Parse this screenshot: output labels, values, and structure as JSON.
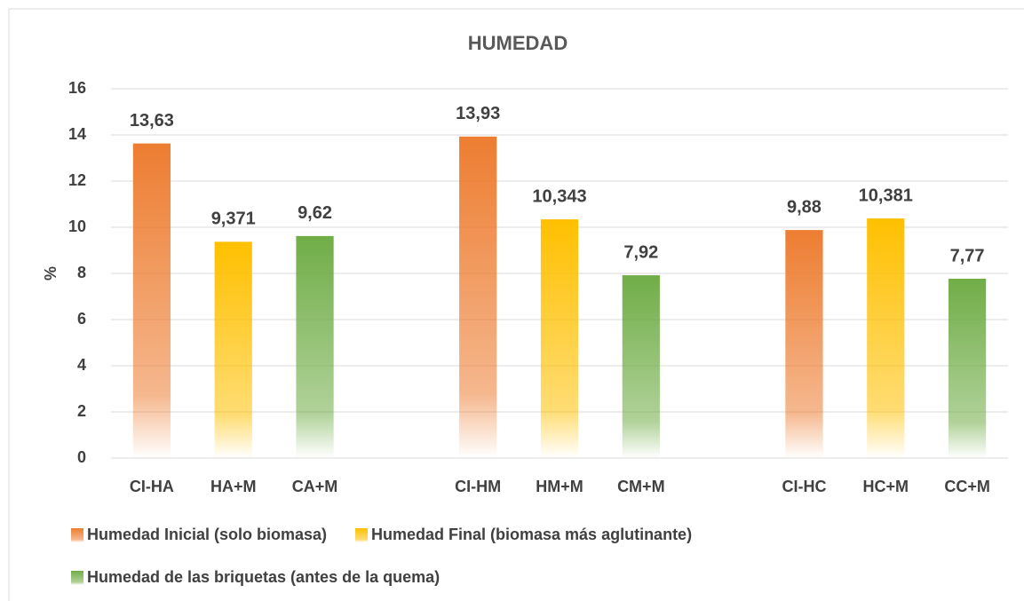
{
  "chart_data": {
    "type": "bar",
    "title": "HUMEDAD",
    "y_label": "%",
    "categories": [
      "CI-HA",
      "HA+M",
      "CA+M",
      null,
      "CI-HM",
      "HM+M",
      "CM+M",
      null,
      "CI-HC",
      "HC+M",
      "CC+M"
    ],
    "series": [
      {
        "name": "Humedad Inicial (solo biomasa)",
        "color": "#ed7d31",
        "values": [
          13.63,
          null,
          null,
          null,
          13.93,
          null,
          null,
          null,
          9.88,
          null,
          null
        ],
        "value_labels": [
          "13,63",
          null,
          null,
          null,
          "13,93",
          null,
          null,
          null,
          "9,88",
          null,
          null
        ]
      },
      {
        "name": "Humedad Final (biomasa más aglutinante)",
        "color": "#ffc000",
        "values": [
          null,
          9.371,
          null,
          null,
          null,
          10.343,
          null,
          null,
          null,
          10.381,
          null
        ],
        "value_labels": [
          null,
          "9,371",
          null,
          null,
          null,
          "10,343",
          null,
          null,
          null,
          "10,381",
          null
        ]
      },
      {
        "name": "Humedad de las briquetas (antes de la quema)",
        "color": "#70ad47",
        "values": [
          null,
          null,
          9.62,
          null,
          null,
          null,
          7.92,
          null,
          null,
          null,
          7.77
        ],
        "value_labels": [
          null,
          null,
          "9,62",
          null,
          null,
          null,
          "7,92",
          null,
          null,
          null,
          "7,77"
        ]
      }
    ],
    "ylim": [
      0,
      16
    ],
    "yticks": [
      0,
      2,
      4,
      6,
      8,
      10,
      12,
      14,
      16
    ],
    "grid": true,
    "legend": "bottom"
  }
}
